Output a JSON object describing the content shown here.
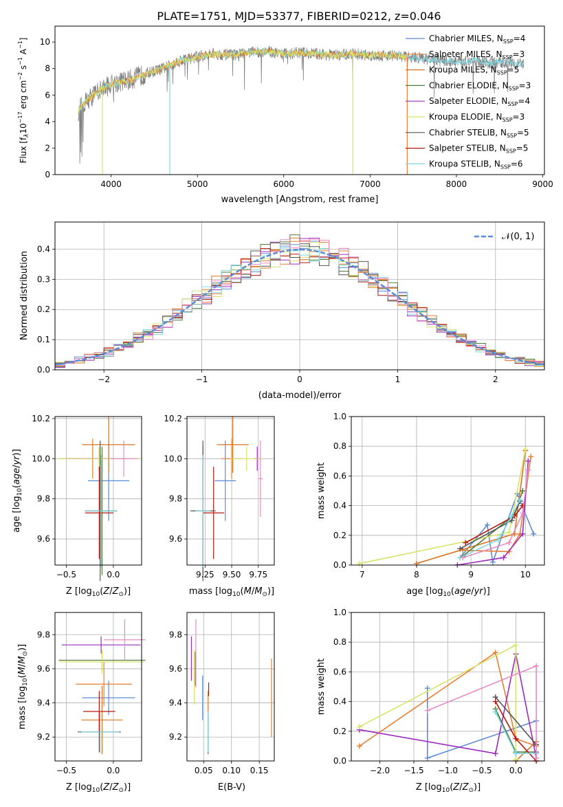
{
  "figure": {
    "title": "PLATE=1751, MJD=53377, FIBERID=0212, z=0.046",
    "legend_entries": [
      {
        "base": "Chabrier MILES, N",
        "sub": "SSP",
        "tail": "=4",
        "color": "#5b8bd6"
      },
      {
        "base": "Salpeter MILES, N",
        "sub": "SSP",
        "tail": "=3",
        "color": "#e87d2f"
      },
      {
        "base": "Kroupa MILES, N",
        "sub": "SSP",
        "tail": "=5",
        "color": "#d9731c"
      },
      {
        "base": "Chabrier ELODIE, N",
        "sub": "SSP",
        "tail": "=3",
        "color": "#4f7a3a"
      },
      {
        "base": "Salpeter ELODIE, N",
        "sub": "SSP",
        "tail": "=4",
        "color": "#9b2bbd"
      },
      {
        "base": "Kroupa ELODIE, N",
        "sub": "SSP",
        "tail": "=3",
        "color": "#d7e36a"
      },
      {
        "base": "Chabrier STELIB, N",
        "sub": "SSP",
        "tail": "=5",
        "color": "#555555"
      },
      {
        "base": "Salpeter STELIB, N",
        "sub": "SSP",
        "tail": "=5",
        "color": "#b3170f"
      },
      {
        "base": "Kroupa STELIB, N",
        "sub": "SSP",
        "tail": "=6",
        "color": "#7fd6de"
      }
    ],
    "hist_legend": "𝒩(0, 1)"
  },
  "chart_data": [
    {
      "id": "spectrum",
      "type": "line",
      "xlabel": "wavelength [Angstrom, rest frame]",
      "ylabel_text": "Flux [f",
      "ylabel_tail": "10",
      "xlim": [
        3350,
        9020
      ],
      "ylim": [
        0,
        11.2
      ],
      "xticks": [
        4000,
        5000,
        6000,
        7000,
        8000,
        9000
      ],
      "yticks": [
        0,
        2,
        4,
        6,
        8,
        10
      ],
      "continuum_points": [
        [
          3620,
          4.9
        ],
        [
          3700,
          5.5
        ],
        [
          3800,
          6.0
        ],
        [
          3900,
          6.5
        ],
        [
          4000,
          6.8
        ],
        [
          4100,
          7.0
        ],
        [
          4200,
          7.1
        ],
        [
          4400,
          7.6
        ],
        [
          4600,
          8.0
        ],
        [
          4800,
          8.6
        ],
        [
          5000,
          8.9
        ],
        [
          5200,
          9.1
        ],
        [
          5400,
          9.0
        ],
        [
          5600,
          9.2
        ],
        [
          5800,
          9.3
        ],
        [
          6000,
          9.1
        ],
        [
          6200,
          9.2
        ],
        [
          6400,
          9.1
        ],
        [
          6600,
          9.0
        ],
        [
          6800,
          9.1
        ],
        [
          7000,
          9.0
        ],
        [
          7200,
          9.0
        ],
        [
          7400,
          8.9
        ],
        [
          7600,
          8.8
        ],
        [
          7800,
          8.6
        ],
        [
          8000,
          8.5
        ],
        [
          8200,
          8.6
        ],
        [
          8400,
          8.4
        ],
        [
          8600,
          8.5
        ],
        [
          8780,
          8.3
        ]
      ]
    },
    {
      "id": "residual-histogram",
      "type": "histogram",
      "xlabel": "(data-model)/error",
      "ylabel": "Normed distribution",
      "xlim": [
        -2.5,
        2.5
      ],
      "ylim": [
        0,
        0.49
      ],
      "xticks": [
        -2,
        -1,
        0,
        1,
        2
      ],
      "yticks": [
        0.0,
        0.1,
        0.2,
        0.3,
        0.4
      ],
      "bin_width": 0.1,
      "reference": "normal(0,1)"
    },
    {
      "id": "age-vs-Z",
      "type": "errorbar",
      "xlabel": "Z [log",
      "ylabel": "age  [log",
      "xlim": [
        -0.62,
        0.3
      ],
      "ylim": [
        9.47,
        10.21
      ],
      "xticks": [
        -0.5,
        0.0
      ],
      "yticks": [
        9.6,
        9.8,
        10.0,
        10.2
      ],
      "points": [
        {
          "x": -0.05,
          "y": 9.89,
          "xerr": 0.22,
          "yerr": 0.2,
          "color": "#5b8bd6"
        },
        {
          "x": -0.22,
          "y": 10.0,
          "xerr": 0.35,
          "yerr": 0.1,
          "color": "#e87d2f"
        },
        {
          "x": -0.05,
          "y": 10.07,
          "xerr": 0.28,
          "yerr": 0.14,
          "color": "#d9731c"
        },
        {
          "x": -0.12,
          "y": 9.74,
          "xerr": 0.16,
          "yerr": 0.32,
          "color": "#4f7a3a"
        },
        {
          "x": -0.15,
          "y": 10.0,
          "xerr": 0.35,
          "yerr": 0.06,
          "color": "#9b2bbd"
        },
        {
          "x": -0.15,
          "y": 10.0,
          "xerr": 0.45,
          "yerr": 0.06,
          "color": "#d7e36a"
        },
        {
          "x": -0.14,
          "y": 9.74,
          "xerr": 0.16,
          "yerr": 0.35,
          "color": "#555555"
        },
        {
          "x": -0.15,
          "y": 9.73,
          "xerr": 0.15,
          "yerr": 0.23,
          "color": "#b3170f"
        },
        {
          "x": -0.13,
          "y": 9.74,
          "xerr": 0.16,
          "yerr": 0.28,
          "color": "#7fd6de"
        },
        {
          "x": 0.11,
          "y": 10.0,
          "xerr": 0.15,
          "yerr": 0.09,
          "color": "#e78ac3"
        }
      ]
    },
    {
      "id": "age-vs-mass",
      "type": "errorbar",
      "xlabel": "mass [log",
      "xlim": [
        9.08,
        9.9
      ],
      "ylim": [
        9.47,
        10.21
      ],
      "xticks": [
        9.25,
        9.5,
        9.75
      ],
      "yticks": [
        9.6,
        9.8,
        10.0,
        10.2
      ],
      "points": [
        {
          "x": 9.44,
          "y": 9.89,
          "xerr": 0.1,
          "yerr": 0.2,
          "color": "#5b8bd6"
        },
        {
          "x": 9.5,
          "y": 10.0,
          "xerr": 0.1,
          "yerr": 0.1,
          "color": "#e87d2f"
        },
        {
          "x": 9.51,
          "y": 10.07,
          "xerr": 0.15,
          "yerr": 0.14,
          "color": "#d9731c"
        },
        {
          "x": 9.23,
          "y": 9.74,
          "xerr": 0.1,
          "yerr": 0.32,
          "color": "#4f7a3a"
        },
        {
          "x": 9.74,
          "y": 10.0,
          "xerr": 0.03,
          "yerr": 0.06,
          "color": "#9b2bbd"
        },
        {
          "x": 9.64,
          "y": 10.0,
          "xerr": 0.15,
          "yerr": 0.06,
          "color": "#d7e36a"
        },
        {
          "x": 9.23,
          "y": 9.74,
          "xerr": 0.12,
          "yerr": 0.35,
          "color": "#555555"
        },
        {
          "x": 9.33,
          "y": 9.73,
          "xerr": 0.1,
          "yerr": 0.23,
          "color": "#b3170f"
        },
        {
          "x": 9.23,
          "y": 9.74,
          "xerr": 0.07,
          "yerr": 0.28,
          "color": "#7fd6de"
        },
        {
          "x": 9.77,
          "y": 9.9,
          "xerr": 0.02,
          "yerr": 0.19,
          "color": "#e78ac3"
        }
      ]
    },
    {
      "id": "mass-weight-vs-age",
      "type": "line",
      "xlabel": "age  [log",
      "ylabel": "mass weight",
      "xlim": [
        6.8,
        10.35
      ],
      "ylim": [
        0,
        1.0
      ],
      "xticks": [
        7,
        8,
        9,
        10
      ],
      "yticks": [
        0.0,
        0.2,
        0.4,
        0.6,
        0.8,
        1.0
      ],
      "series": [
        {
          "color": "#5b8bd6",
          "x": [
            8.8,
            9.3,
            9.4,
            9.85,
            10.15
          ],
          "y": [
            0.05,
            0.27,
            0.02,
            0.48,
            0.21
          ]
        },
        {
          "color": "#e87d2f",
          "x": [
            8.85,
            9.7,
            9.9,
            10.1
          ],
          "y": [
            0.1,
            0.09,
            0.21,
            0.73
          ]
        },
        {
          "color": "#d9731c",
          "x": [
            8.0,
            9.8,
            10.0
          ],
          "y": [
            0.01,
            0.21,
            0.77
          ]
        },
        {
          "color": "#4f7a3a",
          "x": [
            8.85,
            9.8,
            9.95
          ],
          "y": [
            0.06,
            0.34,
            0.5
          ]
        },
        {
          "color": "#9b2bbd",
          "x": [
            8.75,
            9.6,
            9.95,
            10.05
          ],
          "y": [
            0.0,
            0.05,
            0.21,
            0.7
          ]
        },
        {
          "color": "#d7e36a",
          "x": [
            6.95,
            9.7,
            10.0
          ],
          "y": [
            0.01,
            0.22,
            0.78
          ]
        },
        {
          "color": "#555555",
          "x": [
            8.8,
            9.75,
            9.9
          ],
          "y": [
            0.11,
            0.3,
            0.43
          ]
        },
        {
          "color": "#b3170f",
          "x": [
            8.9,
            9.8,
            9.95
          ],
          "y": [
            0.15,
            0.33,
            0.4
          ]
        },
        {
          "color": "#7fd6de",
          "x": [
            8.8,
            9.5,
            9.75,
            9.9
          ],
          "y": [
            0.05,
            0.17,
            0.33,
            0.44
          ]
        },
        {
          "color": "#e78ac3",
          "x": [
            8.85,
            9.7,
            9.95,
            10.05
          ],
          "y": [
            0.05,
            0.15,
            0.35,
            0.64
          ]
        }
      ]
    },
    {
      "id": "mass-vs-Z",
      "type": "errorbar",
      "xlabel": "Z [log",
      "ylabel": "mass [log",
      "xlim": [
        -0.62,
        0.3
      ],
      "ylim": [
        9.06,
        9.93
      ],
      "xticks": [
        -0.5,
        0.0
      ],
      "yticks": [
        9.2,
        9.4,
        9.6,
        9.8
      ],
      "points": [
        {
          "x": -0.05,
          "y": 9.43,
          "xerr": 0.28,
          "yerr": 0.1,
          "color": "#5b8bd6"
        },
        {
          "x": -0.1,
          "y": 9.51,
          "xerr": 0.3,
          "yerr": 0.13,
          "color": "#e87d2f"
        },
        {
          "x": -0.12,
          "y": 9.3,
          "xerr": 0.22,
          "yerr": 0.2,
          "color": "#d9731c"
        },
        {
          "x": -0.12,
          "y": 9.65,
          "xerr": 0.46,
          "yerr": 0.06,
          "color": "#4f7a3a"
        },
        {
          "x": -0.13,
          "y": 9.74,
          "xerr": 0.42,
          "yerr": 0.05,
          "color": "#9b2bbd"
        },
        {
          "x": -0.12,
          "y": 9.64,
          "xerr": 0.45,
          "yerr": 0.07,
          "color": "#d7e36a"
        },
        {
          "x": -0.15,
          "y": 9.23,
          "xerr": 0.23,
          "yerr": 0.12,
          "color": "#555555"
        },
        {
          "x": -0.15,
          "y": 9.35,
          "xerr": 0.17,
          "yerr": 0.12,
          "color": "#b3170f"
        },
        {
          "x": -0.14,
          "y": 9.23,
          "xerr": 0.2,
          "yerr": 0.12,
          "color": "#7fd6de"
        },
        {
          "x": 0.12,
          "y": 9.77,
          "xerr": 0.22,
          "yerr": 0.12,
          "color": "#e78ac3"
        }
      ]
    },
    {
      "id": "mass-vs-EBV",
      "type": "errorbar",
      "xlabel": "E(B-V)",
      "xlim": [
        0.02,
        0.177
      ],
      "ylim": [
        9.06,
        9.93
      ],
      "xticks": [
        0.05,
        0.1,
        0.15
      ],
      "yticks": [
        9.2,
        9.4,
        9.6,
        9.8
      ],
      "points": [
        {
          "x": 0.048,
          "y": 9.43,
          "yerr": 0.13,
          "color": "#5b8bd6"
        },
        {
          "x": 0.172,
          "y": 9.43,
          "yerr": 0.23,
          "color": "#e87d2f"
        },
        {
          "x": 0.058,
          "y": 9.35,
          "yerr": 0.12,
          "color": "#d9731c"
        },
        {
          "x": 0.035,
          "y": 9.6,
          "yerr": 0.1,
          "color": "#4f7a3a"
        },
        {
          "x": 0.028,
          "y": 9.66,
          "yerr": 0.13,
          "color": "#9b2bbd"
        },
        {
          "x": 0.033,
          "y": 9.55,
          "yerr": 0.16,
          "color": "#d7e36a"
        },
        {
          "x": 0.058,
          "y": 9.22,
          "yerr": 0.12,
          "color": "#555555"
        },
        {
          "x": 0.059,
          "y": 9.48,
          "yerr": 0.04,
          "color": "#b3170f"
        },
        {
          "x": 0.058,
          "y": 9.23,
          "yerr": 0.12,
          "color": "#7fd6de"
        },
        {
          "x": 0.036,
          "y": 9.69,
          "yerr": 0.2,
          "color": "#e78ac3"
        }
      ]
    },
    {
      "id": "mass-weight-vs-Z",
      "type": "line",
      "xlabel": "Z [log",
      "ylabel": "mass weight",
      "xlim": [
        -2.42,
        0.42
      ],
      "ylim": [
        0,
        1.0
      ],
      "xticks": [
        -2.0,
        -1.5,
        -1.0,
        -0.5,
        0.0
      ],
      "yticks": [
        0.0,
        0.2,
        0.4,
        0.6,
        0.8,
        1.0
      ],
      "series": [
        {
          "color": "#5b8bd6",
          "x": [
            -1.3,
            -1.3,
            0.3
          ],
          "y": [
            0.49,
            0.02,
            0.27
          ]
        },
        {
          "color": "#e87d2f",
          "x": [
            -2.3,
            -0.3,
            0.0,
            0.3
          ],
          "y": [
            0.1,
            0.73,
            0.15,
            0.1
          ]
        },
        {
          "color": "#d9731c",
          "x": [
            0.0,
            0.3
          ],
          "y": [
            0.0,
            0.13
          ]
        },
        {
          "color": "#4f7a3a",
          "x": [
            -0.3,
            0.0,
            0.3
          ],
          "y": [
            0.35,
            0.06,
            0.06
          ]
        },
        {
          "color": "#9b2bbd",
          "x": [
            -2.3,
            -0.3,
            0.0,
            0.3
          ],
          "y": [
            0.21,
            0.05,
            0.72,
            0.02
          ]
        },
        {
          "color": "#d7e36a",
          "x": [
            -2.3,
            0.0,
            0.0
          ],
          "y": [
            0.23,
            0.78,
            0.01
          ]
        },
        {
          "color": "#555555",
          "x": [
            -0.3,
            0.3
          ],
          "y": [
            0.43,
            0.11
          ]
        },
        {
          "color": "#b3170f",
          "x": [
            -0.3,
            0.0,
            0.3
          ],
          "y": [
            0.4,
            0.15,
            0.0
          ]
        },
        {
          "color": "#7fd6de",
          "x": [
            -0.3,
            0.0,
            0.3
          ],
          "y": [
            0.33,
            0.05,
            0.05
          ]
        },
        {
          "color": "#e78ac3",
          "x": [
            -1.3,
            0.3,
            0.3
          ],
          "y": [
            0.34,
            0.64,
            0.02
          ]
        }
      ]
    }
  ]
}
